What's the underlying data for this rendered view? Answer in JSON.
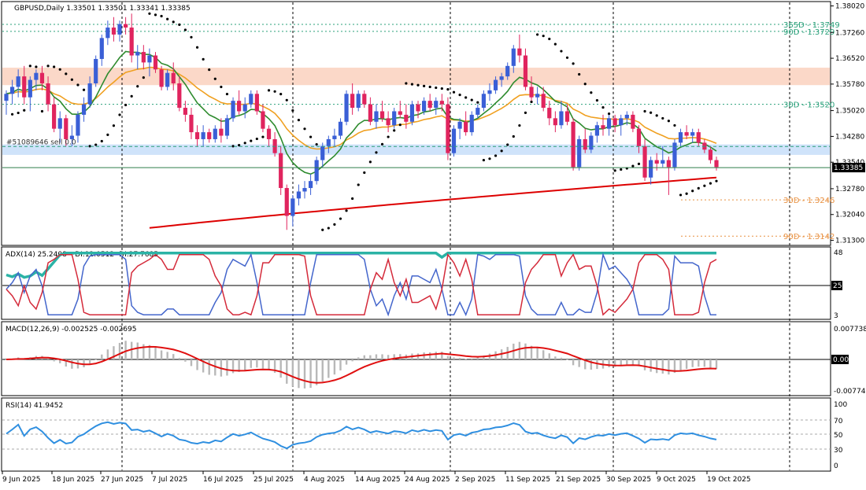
{
  "header": {
    "main": "GBPUSD,Daily  1.33501  1.33501  1.33341  1.33385",
    "adx": "ADX(14) 25.2408 +DI:12.0512 -DI:27.7685",
    "macd": "MACD(12,26,9) -0.002525 -0.002695",
    "rsi": "RSI(14) 41.9452",
    "order": "#51089646 sell 0.0"
  },
  "colors": {
    "bull": "#3a5fd6",
    "bear": "#e0245e",
    "ema9": "#2e8b2e",
    "ema21": "#f0a020",
    "ema200": "#dd0000",
    "sar": "#000000",
    "adx": "#2bb3a6",
    "pdi": "#4466cc",
    "mdi": "#d42a3a",
    "macd_hist": "#b8b8b8",
    "macd_signal": "#e01010",
    "rsi": "#2f8fe0",
    "resist_zone": "#fbd8c8",
    "support_zone": "#cfe3fa",
    "pivot": "#2aa07a",
    "pivot_low": "#e89040"
  },
  "price_axis": {
    "ticks": [
      "1.38020",
      "1.37260",
      "1.36520",
      "1.35780",
      "1.35020",
      "1.34280",
      "1.33540",
      "1.32780",
      "1.32040",
      "1.31300"
    ],
    "current": "1.33385"
  },
  "levels": [
    {
      "label": "365D - 1.3749"
    },
    {
      "label": "90D - 1.3729"
    },
    {
      "label": "30D - 1.3520"
    },
    {
      "label": "30D - 1.3246"
    },
    {
      "label": "90D - 1.3142"
    }
  ],
  "dates": [
    "9 Jun 2025",
    "18 Jun 2025",
    "27 Jun 2025",
    "7 Jul 2025",
    "16 Jul 2025",
    "25 Jul 2025",
    "4 Aug 2025",
    "14 Aug 2025",
    "24 Aug 2025",
    "2 Sep 2025",
    "11 Sep 2025",
    "21 Sep 2025",
    "30 Sep 2025",
    "9 Oct 2025",
    "19 Oct 2025"
  ],
  "adx_axis": {
    "top": "48",
    "mid": "25",
    "bottom": "3"
  },
  "macd_axis": {
    "top": "0.007738",
    "mid": "0.00",
    "bottom": "-0.007742"
  },
  "rsi_axis": {
    "l100": "100",
    "l70": "70",
    "l50": "50",
    "l30": "30",
    "l0": "0"
  },
  "chart_data": {
    "type": "candlestick",
    "symbol": "GBPUSD",
    "timeframe": "Daily",
    "ylim": [
      1.312,
      1.381
    ],
    "ohlc": [
      [
        1.353,
        1.356,
        1.349,
        1.355
      ],
      [
        1.355,
        1.359,
        1.352,
        1.357
      ],
      [
        1.357,
        1.362,
        1.354,
        1.36
      ],
      [
        1.36,
        1.363,
        1.352,
        1.354
      ],
      [
        1.354,
        1.36,
        1.35,
        1.359
      ],
      [
        1.359,
        1.362,
        1.356,
        1.361
      ],
      [
        1.361,
        1.363,
        1.356,
        1.358
      ],
      [
        1.358,
        1.36,
        1.35,
        1.352
      ],
      [
        1.352,
        1.354,
        1.344,
        1.345
      ],
      [
        1.345,
        1.35,
        1.341,
        1.348
      ],
      [
        1.348,
        1.349,
        1.34,
        1.342
      ],
      [
        1.342,
        1.346,
        1.34,
        1.343
      ],
      [
        1.343,
        1.35,
        1.341,
        1.349
      ],
      [
        1.349,
        1.354,
        1.347,
        1.352
      ],
      [
        1.352,
        1.36,
        1.351,
        1.358
      ],
      [
        1.358,
        1.366,
        1.357,
        1.365
      ],
      [
        1.365,
        1.372,
        1.363,
        1.371
      ],
      [
        1.371,
        1.376,
        1.369,
        1.374
      ],
      [
        1.374,
        1.377,
        1.37,
        1.372
      ],
      [
        1.372,
        1.376,
        1.37,
        1.375
      ],
      [
        1.375,
        1.377,
        1.372,
        1.374
      ],
      [
        1.374,
        1.378,
        1.364,
        1.366
      ],
      [
        1.366,
        1.369,
        1.362,
        1.367
      ],
      [
        1.367,
        1.369,
        1.362,
        1.364
      ],
      [
        1.364,
        1.368,
        1.36,
        1.366
      ],
      [
        1.366,
        1.367,
        1.361,
        1.362
      ],
      [
        1.362,
        1.363,
        1.356,
        1.357
      ],
      [
        1.357,
        1.362,
        1.356,
        1.361
      ],
      [
        1.361,
        1.364,
        1.356,
        1.358
      ],
      [
        1.358,
        1.36,
        1.35,
        1.351
      ],
      [
        1.351,
        1.353,
        1.347,
        1.349
      ],
      [
        1.349,
        1.351,
        1.342,
        1.344
      ],
      [
        1.344,
        1.346,
        1.34,
        1.342
      ],
      [
        1.342,
        1.346,
        1.34,
        1.344
      ],
      [
        1.344,
        1.345,
        1.341,
        1.342
      ],
      [
        1.342,
        1.346,
        1.341,
        1.345
      ],
      [
        1.345,
        1.348,
        1.341,
        1.343
      ],
      [
        1.343,
        1.349,
        1.342,
        1.348
      ],
      [
        1.348,
        1.354,
        1.347,
        1.353
      ],
      [
        1.353,
        1.356,
        1.349,
        1.35
      ],
      [
        1.35,
        1.354,
        1.348,
        1.352
      ],
      [
        1.352,
        1.356,
        1.351,
        1.355
      ],
      [
        1.355,
        1.356,
        1.349,
        1.35
      ],
      [
        1.35,
        1.352,
        1.344,
        1.345
      ],
      [
        1.345,
        1.346,
        1.34,
        1.342
      ],
      [
        1.342,
        1.344,
        1.337,
        1.338
      ],
      [
        1.338,
        1.34,
        1.326,
        1.328
      ],
      [
        1.328,
        1.329,
        1.316,
        1.32
      ],
      [
        1.32,
        1.326,
        1.317,
        1.325
      ],
      [
        1.325,
        1.329,
        1.323,
        1.327
      ],
      [
        1.327,
        1.33,
        1.325,
        1.328
      ],
      [
        1.328,
        1.332,
        1.326,
        1.33
      ],
      [
        1.33,
        1.337,
        1.329,
        1.336
      ],
      [
        1.336,
        1.341,
        1.334,
        1.34
      ],
      [
        1.34,
        1.343,
        1.338,
        1.342
      ],
      [
        1.342,
        1.345,
        1.34,
        1.343
      ],
      [
        1.343,
        1.348,
        1.342,
        1.347
      ],
      [
        1.347,
        1.356,
        1.346,
        1.355
      ],
      [
        1.355,
        1.358,
        1.349,
        1.351
      ],
      [
        1.351,
        1.356,
        1.35,
        1.355
      ],
      [
        1.355,
        1.356,
        1.351,
        1.352
      ],
      [
        1.352,
        1.354,
        1.346,
        1.347
      ],
      [
        1.347,
        1.352,
        1.345,
        1.35
      ],
      [
        1.35,
        1.353,
        1.347,
        1.348
      ],
      [
        1.348,
        1.35,
        1.344,
        1.346
      ],
      [
        1.346,
        1.351,
        1.345,
        1.35
      ],
      [
        1.35,
        1.353,
        1.348,
        1.349
      ],
      [
        1.349,
        1.352,
        1.345,
        1.347
      ],
      [
        1.347,
        1.353,
        1.346,
        1.352
      ],
      [
        1.352,
        1.353,
        1.348,
        1.35
      ],
      [
        1.35,
        1.354,
        1.349,
        1.353
      ],
      [
        1.353,
        1.355,
        1.35,
        1.351
      ],
      [
        1.351,
        1.354,
        1.349,
        1.353
      ],
      [
        1.353,
        1.355,
        1.35,
        1.352
      ],
      [
        1.352,
        1.354,
        1.336,
        1.338
      ],
      [
        1.338,
        1.346,
        1.337,
        1.345
      ],
      [
        1.345,
        1.348,
        1.342,
        1.347
      ],
      [
        1.347,
        1.35,
        1.343,
        1.344
      ],
      [
        1.344,
        1.35,
        1.343,
        1.349
      ],
      [
        1.349,
        1.352,
        1.348,
        1.351
      ],
      [
        1.351,
        1.356,
        1.35,
        1.355
      ],
      [
        1.355,
        1.358,
        1.353,
        1.356
      ],
      [
        1.356,
        1.36,
        1.355,
        1.359
      ],
      [
        1.359,
        1.361,
        1.357,
        1.36
      ],
      [
        1.36,
        1.364,
        1.359,
        1.363
      ],
      [
        1.363,
        1.369,
        1.361,
        1.368
      ],
      [
        1.368,
        1.372,
        1.364,
        1.366
      ],
      [
        1.366,
        1.368,
        1.356,
        1.357
      ],
      [
        1.357,
        1.36,
        1.353,
        1.354
      ],
      [
        1.354,
        1.357,
        1.352,
        1.355
      ],
      [
        1.355,
        1.357,
        1.35,
        1.351
      ],
      [
        1.351,
        1.353,
        1.346,
        1.348
      ],
      [
        1.348,
        1.35,
        1.344,
        1.346
      ],
      [
        1.346,
        1.353,
        1.345,
        1.35
      ],
      [
        1.35,
        1.352,
        1.346,
        1.347
      ],
      [
        1.347,
        1.348,
        1.333,
        1.334
      ],
      [
        1.334,
        1.343,
        1.333,
        1.342
      ],
      [
        1.342,
        1.345,
        1.338,
        1.339
      ],
      [
        1.339,
        1.344,
        1.338,
        1.343
      ],
      [
        1.343,
        1.347,
        1.341,
        1.346
      ],
      [
        1.346,
        1.349,
        1.343,
        1.345
      ],
      [
        1.345,
        1.349,
        1.343,
        1.348
      ],
      [
        1.348,
        1.349,
        1.344,
        1.346
      ],
      [
        1.346,
        1.349,
        1.343,
        1.348
      ],
      [
        1.348,
        1.35,
        1.346,
        1.349
      ],
      [
        1.349,
        1.35,
        1.344,
        1.345
      ],
      [
        1.345,
        1.346,
        1.338,
        1.34
      ],
      [
        1.34,
        1.342,
        1.33,
        1.331
      ],
      [
        1.331,
        1.337,
        1.329,
        1.336
      ],
      [
        1.336,
        1.338,
        1.333,
        1.335
      ],
      [
        1.335,
        1.34,
        1.334,
        1.336
      ],
      [
        1.336,
        1.337,
        1.326,
        1.334
      ],
      [
        1.334,
        1.342,
        1.333,
        1.341
      ],
      [
        1.341,
        1.345,
        1.34,
        1.344
      ],
      [
        1.344,
        1.346,
        1.342,
        1.343
      ],
      [
        1.343,
        1.345,
        1.341,
        1.344
      ],
      [
        1.344,
        1.345,
        1.34,
        1.341
      ],
      [
        1.341,
        1.342,
        1.338,
        1.339
      ],
      [
        1.339,
        1.34,
        1.335,
        1.336
      ],
      [
        1.336,
        1.337,
        1.333,
        1.334
      ]
    ],
    "levels": [
      1.3749,
      1.3729,
      1.352,
      1.3246,
      1.3142
    ],
    "current_price": 1.33385,
    "order_price": 1.3399,
    "resistance_zone": [
      1.3575,
      1.3625
    ],
    "support_zone": [
      1.3375,
      1.3405
    ],
    "panels": [
      "ADX(14)",
      "MACD(12,26,9)",
      "RSI(14)"
    ]
  }
}
